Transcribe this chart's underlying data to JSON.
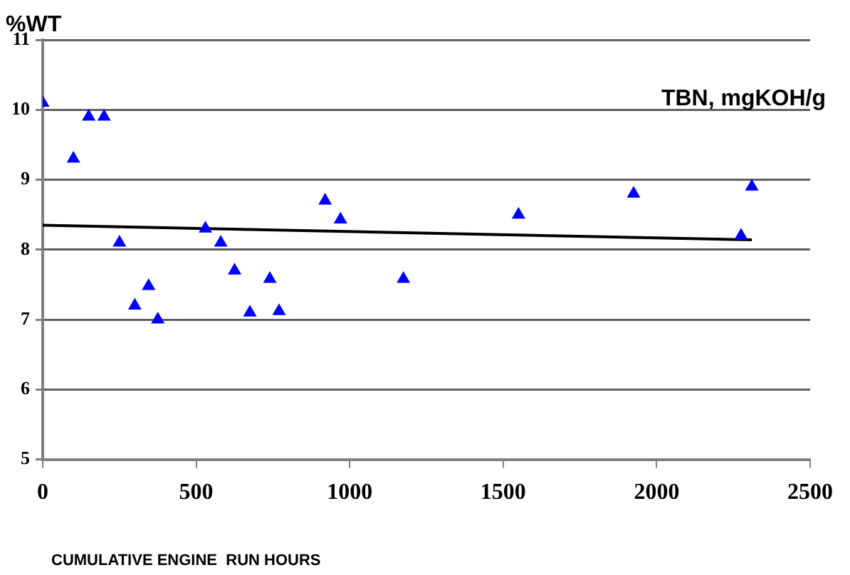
{
  "chart_data": {
    "type": "scatter",
    "ylabel": "%WT",
    "xlabel": "CUMULATIVE ENGINE  RUN HOURS",
    "annotations": [
      "TBN, mgKOH/g"
    ],
    "series": [
      {
        "color": "#0000ff",
        "marker": "triangle",
        "x": [
          0,
          100,
          150,
          200,
          250,
          300,
          345,
          375,
          530,
          580,
          625,
          675,
          740,
          770,
          920,
          970,
          1175,
          1550,
          1925,
          2275,
          2310
        ],
        "values": [
          10.1,
          9.3,
          9.9,
          9.9,
          8.1,
          7.2,
          7.48,
          7.0,
          8.3,
          8.1,
          7.7,
          7.1,
          7.58,
          7.12,
          8.7,
          8.43,
          7.58,
          8.5,
          8.8,
          8.2,
          8.9
        ]
      },
      {
        "type": "line",
        "color": "#000000",
        "marker": "none",
        "x": [
          0,
          2310
        ],
        "values": [
          8.35,
          8.14
        ]
      }
    ],
    "xlim": [
      0,
      2500
    ],
    "xticks": [
      0,
      500,
      1000,
      1500,
      2000,
      2500
    ],
    "ylim": [
      5,
      11
    ],
    "yticks": [
      5,
      6,
      7,
      8,
      9,
      10,
      11
    ],
    "grid": "y",
    "legend": false
  }
}
